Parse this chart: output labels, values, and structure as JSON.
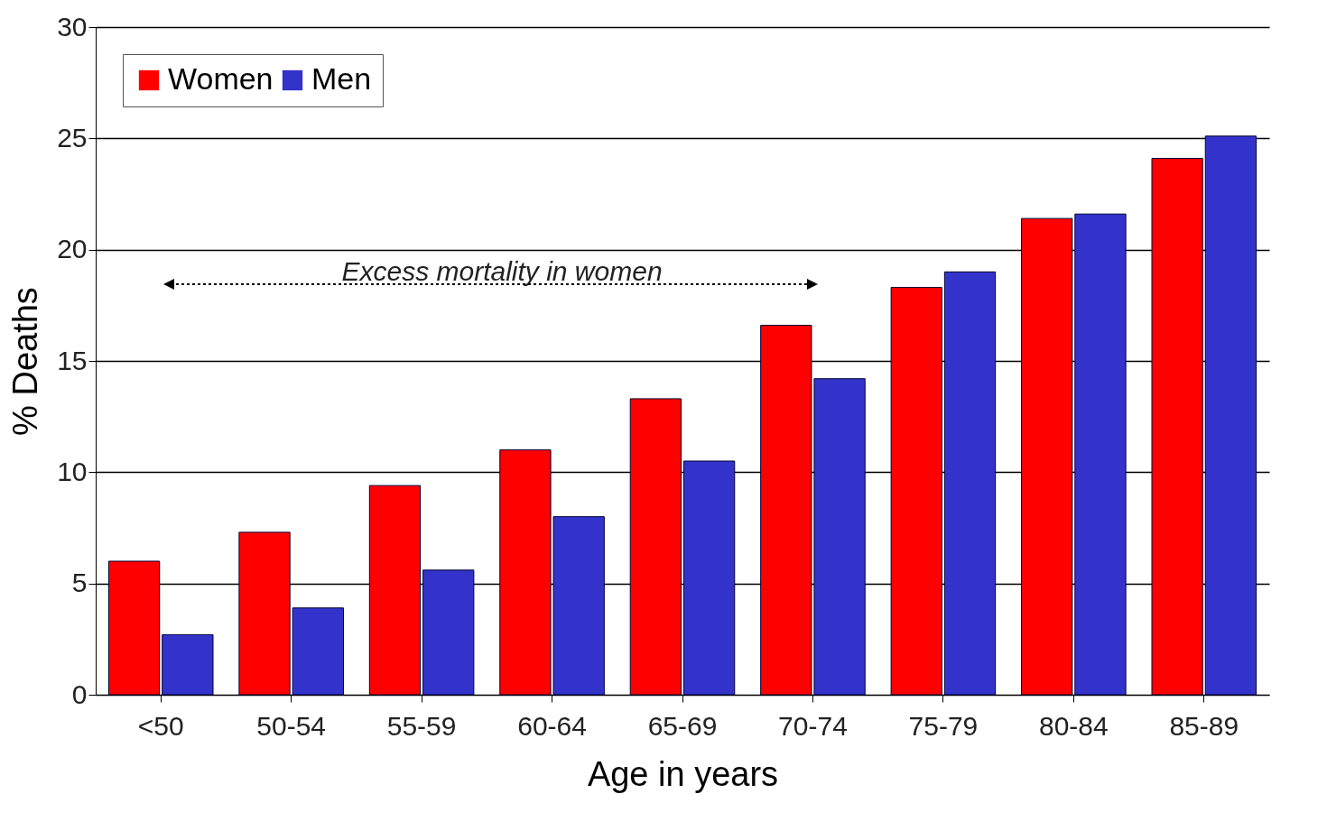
{
  "chart_data": {
    "type": "bar",
    "xlabel": "Age in years",
    "ylabel": "% Deaths",
    "categories": [
      "<50",
      "50-54",
      "55-59",
      "60-64",
      "65-69",
      "70-74",
      "75-79",
      "80-84",
      "85-89"
    ],
    "series": [
      {
        "name": "Women",
        "color": "#ff0000",
        "values": [
          6.0,
          7.3,
          9.4,
          11.0,
          13.3,
          16.6,
          18.3,
          21.4,
          24.1
        ]
      },
      {
        "name": "Men",
        "color": "#3333cc",
        "values": [
          2.7,
          3.9,
          5.6,
          8.0,
          10.5,
          14.2,
          19.0,
          21.6,
          25.1
        ]
      }
    ],
    "ylim": [
      0,
      30
    ],
    "yticks": [
      0,
      5,
      10,
      15,
      20,
      25,
      30
    ],
    "grid": "y",
    "legend": "top left",
    "annotations": [
      "Excess mortality in women"
    ]
  }
}
